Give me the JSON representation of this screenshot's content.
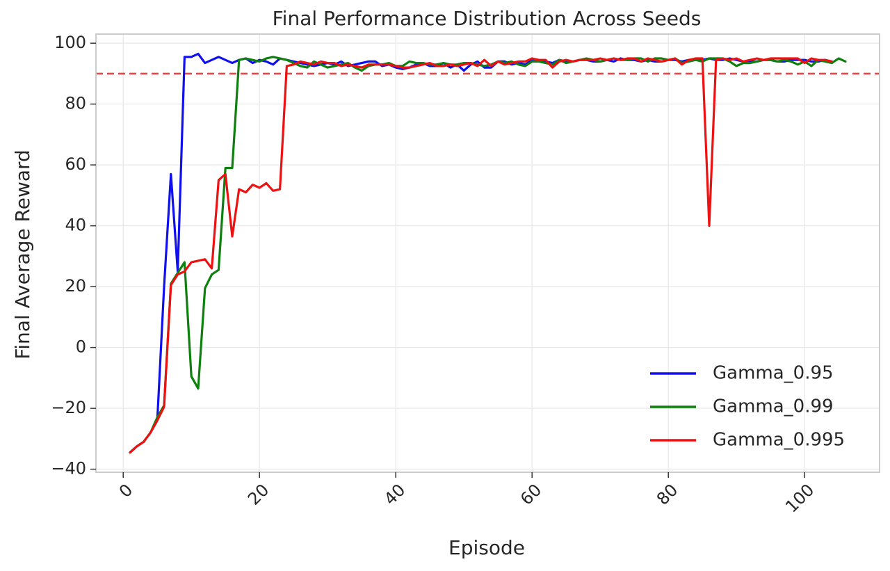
{
  "chart_data": {
    "type": "line",
    "title": "Final Performance Distribution Across Seeds",
    "xlabel": "Episode",
    "ylabel": "Final Average Reward",
    "xlim": [
      -4,
      111
    ],
    "ylim": [
      -41,
      103
    ],
    "x_ticks": [
      0,
      20,
      40,
      60,
      80,
      100
    ],
    "y_ticks": [
      -40,
      -20,
      0,
      20,
      40,
      60,
      80,
      100
    ],
    "x_tick_labels": [
      "0",
      "20",
      "40",
      "60",
      "80",
      "100"
    ],
    "y_tick_labels": [
      "−40",
      "−20",
      "0",
      "20",
      "40",
      "60",
      "80",
      "100"
    ],
    "grid": true,
    "legend_position": "lower-right",
    "reference_line": {
      "y": 90,
      "color": "#e8474a",
      "style": "dashed"
    },
    "series": [
      {
        "name": "Gamma_0.95",
        "color": "#1010ee",
        "x": [
          1,
          2,
          3,
          4,
          5,
          6,
          7,
          8,
          9,
          10,
          11,
          12,
          13,
          14,
          15,
          16,
          17,
          18,
          19,
          20,
          21,
          22,
          23,
          24,
          25,
          26,
          27,
          28,
          29,
          30,
          31,
          32,
          33,
          34,
          35,
          36,
          37,
          38,
          39,
          40,
          41,
          42,
          43,
          44,
          45,
          46,
          47,
          48,
          49,
          50,
          51,
          52,
          53,
          54,
          55,
          56,
          57,
          58,
          59,
          60,
          61,
          62,
          63,
          64,
          65,
          66,
          67,
          68,
          69,
          70,
          71,
          72,
          73,
          74,
          75,
          76,
          77,
          78,
          79,
          80,
          81,
          82,
          83,
          84,
          85,
          86,
          87,
          88,
          89,
          90,
          91,
          92,
          93,
          94,
          95,
          96,
          97,
          98,
          99,
          100,
          101,
          102,
          103,
          104
        ],
        "y": [
          -34.5,
          -32.5,
          -31,
          -28,
          -24,
          20,
          57,
          25,
          95.5,
          95.5,
          96.5,
          93.5,
          94.5,
          95.5,
          94.5,
          93.5,
          94.5,
          95,
          93.5,
          94.5,
          94,
          93,
          95,
          94.5,
          94,
          93.5,
          93,
          92.5,
          93,
          93.5,
          93,
          94,
          92.5,
          93,
          93.5,
          94,
          94,
          92.5,
          93,
          92,
          91.5,
          92,
          93,
          93.5,
          92.5,
          92.5,
          93.5,
          92,
          93,
          91,
          93,
          94,
          92,
          92,
          94,
          94,
          93,
          93.5,
          93,
          94.5,
          94,
          94,
          93.5,
          94.5,
          94,
          94,
          94.5,
          94.5,
          94,
          94,
          94.5,
          94,
          95,
          94.5,
          94.5,
          94,
          94.5,
          94,
          94,
          94.5,
          94.5,
          94,
          94.5,
          94.5,
          94.5,
          95,
          94.5,
          94.5,
          95,
          94.5,
          94,
          94,
          94,
          94.5,
          94.5,
          94,
          94,
          94.5,
          94.5,
          94.5,
          94,
          94,
          94.5,
          94
        ]
      },
      {
        "name": "Gamma_0.99",
        "color": "#0d800d",
        "x": [
          1,
          2,
          3,
          4,
          5,
          6,
          7,
          8,
          9,
          10,
          11,
          12,
          13,
          14,
          15,
          16,
          17,
          18,
          19,
          20,
          21,
          22,
          23,
          24,
          25,
          26,
          27,
          28,
          29,
          30,
          31,
          32,
          33,
          34,
          35,
          36,
          37,
          38,
          39,
          40,
          41,
          42,
          43,
          44,
          45,
          46,
          47,
          48,
          49,
          50,
          51,
          52,
          53,
          54,
          55,
          56,
          57,
          58,
          59,
          60,
          61,
          62,
          63,
          64,
          65,
          66,
          67,
          68,
          69,
          70,
          71,
          72,
          73,
          74,
          75,
          76,
          77,
          78,
          79,
          80,
          81,
          82,
          83,
          84,
          85,
          86,
          87,
          88,
          89,
          90,
          91,
          92,
          93,
          94,
          95,
          96,
          97,
          98,
          99,
          100,
          101,
          102,
          103,
          104,
          105,
          106
        ],
        "y": [
          -34.5,
          -32.5,
          -31,
          -28,
          -23,
          -19,
          21,
          24.5,
          28,
          -9.5,
          -13.5,
          19.5,
          24,
          25.5,
          59,
          59,
          94.5,
          95,
          94.5,
          94,
          95,
          95.5,
          95,
          94.5,
          93.5,
          92.5,
          92,
          94,
          93,
          92,
          92.5,
          93,
          93.5,
          92,
          91,
          92.5,
          93,
          93,
          93.5,
          92.5,
          92.5,
          94,
          93.5,
          93.5,
          93,
          93,
          93.5,
          93,
          93,
          93.5,
          93.5,
          93,
          92.5,
          93,
          94,
          93.5,
          94,
          93,
          92.5,
          94,
          94,
          93.5,
          93,
          94.5,
          93.5,
          94,
          94.5,
          95,
          94.5,
          94,
          94.5,
          95,
          94.5,
          94.5,
          95,
          95,
          94,
          95,
          95,
          94.5,
          95,
          93.5,
          94,
          94.5,
          94,
          95,
          95,
          95,
          94,
          92.5,
          93.5,
          93.5,
          94,
          94.5,
          94.5,
          94,
          94.5,
          94,
          93,
          94,
          92.5,
          94.5,
          94,
          93.5,
          95,
          94
        ]
      },
      {
        "name": "Gamma_0.995",
        "color": "#ee1111",
        "x": [
          1,
          2,
          3,
          4,
          5,
          6,
          7,
          8,
          9,
          10,
          11,
          12,
          13,
          14,
          15,
          16,
          17,
          18,
          19,
          20,
          21,
          22,
          23,
          24,
          25,
          26,
          27,
          28,
          29,
          30,
          31,
          32,
          33,
          34,
          35,
          36,
          37,
          38,
          39,
          40,
          41,
          42,
          43,
          44,
          45,
          46,
          47,
          48,
          49,
          50,
          51,
          52,
          53,
          54,
          55,
          56,
          57,
          58,
          59,
          60,
          61,
          62,
          63,
          64,
          65,
          66,
          67,
          68,
          69,
          70,
          71,
          72,
          73,
          74,
          75,
          76,
          77,
          78,
          79,
          80,
          81,
          82,
          83,
          84,
          85,
          86,
          87,
          88,
          89,
          90,
          91,
          92,
          93,
          94,
          95,
          96,
          97,
          98,
          99,
          100,
          101,
          102,
          103,
          104
        ],
        "y": [
          -34.5,
          -32.5,
          -31,
          -28,
          -24,
          -19.5,
          20.5,
          24,
          25,
          28,
          28.5,
          29,
          26,
          55,
          57,
          36.5,
          52,
          51,
          53.5,
          52.5,
          54,
          51.5,
          52,
          92.5,
          93,
          94,
          93.5,
          93,
          94,
          93.5,
          93.5,
          92.5,
          93,
          92.5,
          92,
          93,
          93,
          93,
          93,
          92.5,
          92,
          92,
          92.5,
          93,
          93.5,
          92.5,
          92.5,
          93,
          92.5,
          93,
          93.5,
          92.5,
          94.5,
          92.5,
          94,
          93,
          93.5,
          94,
          94,
          95,
          94.5,
          94.5,
          92,
          94,
          94.5,
          94,
          94.5,
          94.5,
          94.5,
          95,
          94.5,
          95,
          94.5,
          95,
          95,
          94,
          95,
          94.5,
          94,
          94.5,
          95,
          93,
          94.5,
          95,
          95,
          40,
          94.5,
          95,
          94.5,
          95,
          94,
          94.5,
          95,
          94.5,
          95,
          95,
          95,
          95,
          95,
          93.5,
          95,
          94.5,
          94.5,
          94
        ]
      }
    ]
  }
}
